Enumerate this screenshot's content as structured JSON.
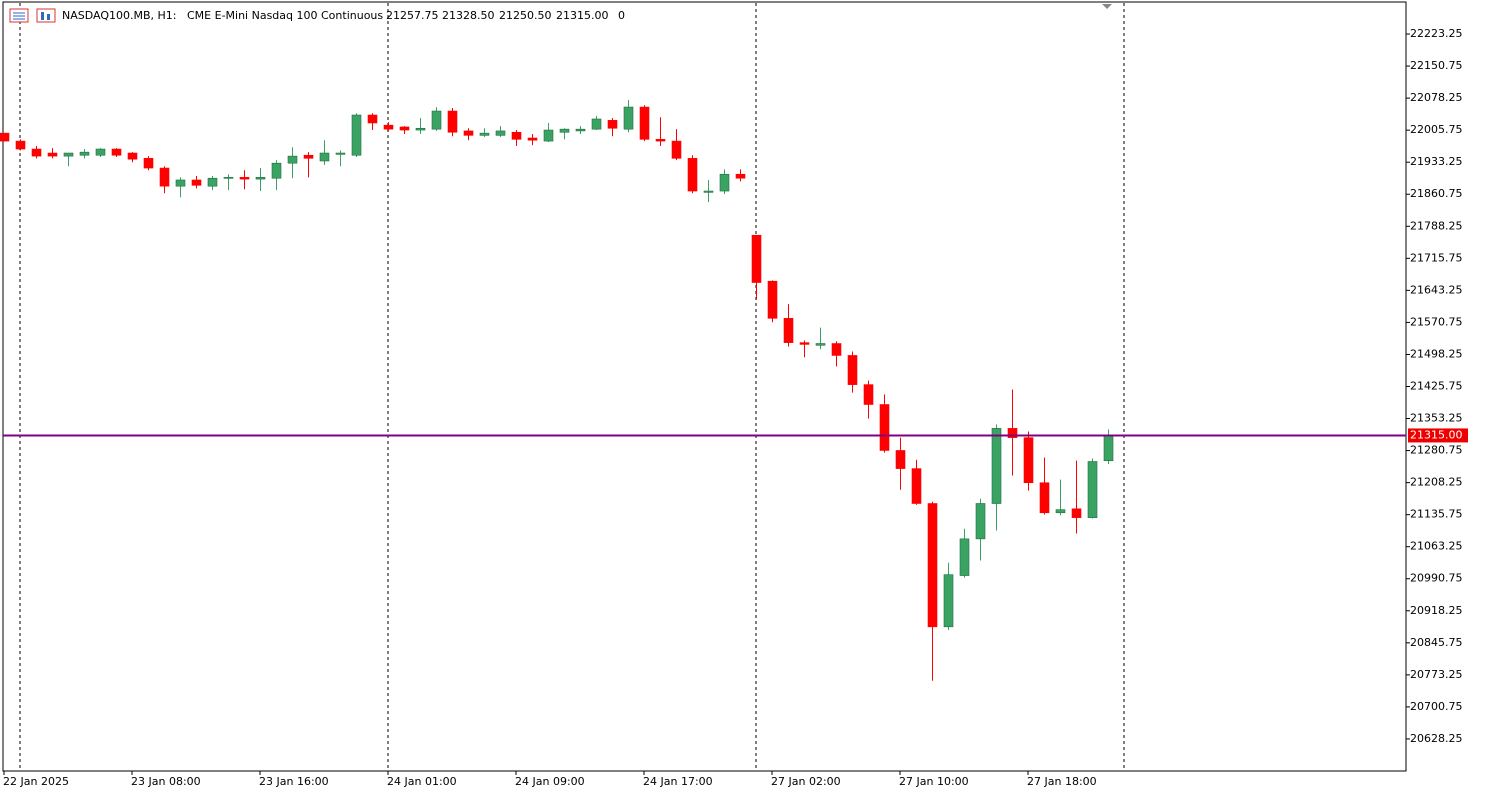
{
  "header": {
    "symbol": "NASDAQ100.MB, H1:",
    "description": "CME E-Mini Nasdaq 100 Continuous",
    "ohlc": [
      "21257.75",
      "21328.50",
      "21250.50",
      "21315.00"
    ],
    "volume": "0"
  },
  "chart_data": {
    "type": "candlestick",
    "categories": [
      "22 Jan 2025",
      null,
      null,
      null,
      null,
      null,
      null,
      null,
      "23 Jan 08:00",
      null,
      null,
      null,
      null,
      null,
      null,
      null,
      "23 Jan 16:00",
      null,
      null,
      null,
      null,
      null,
      null,
      null,
      "24 Jan 01:00",
      null,
      null,
      null,
      null,
      null,
      null,
      null,
      "24 Jan 09:00",
      null,
      null,
      null,
      null,
      null,
      null,
      null,
      "24 Jan 17:00",
      null,
      null,
      null,
      null,
      null,
      null,
      null,
      "27 Jan 02:00",
      null,
      null,
      null,
      null,
      null,
      null,
      null,
      "27 Jan 10:00",
      null,
      null,
      null,
      null,
      null,
      null,
      null,
      "27 Jan 18:00",
      null,
      null,
      null,
      null,
      null
    ],
    "open": [
      21999,
      21981,
      21963,
      21954,
      21947,
      21949,
      21949,
      21963,
      21954,
      21942,
      21920,
      21879,
      21893,
      21879,
      21897,
      21899,
      21895,
      21897,
      21931,
      21949,
      21936,
      21951,
      21949,
      22040,
      22017,
      22013,
      22006,
      22008,
      22049,
      22004,
      21994,
      21994,
      22001,
      21988,
      21981,
      22001,
      22004,
      22008,
      22028,
      22008,
      22058,
      21985,
      21981,
      21942,
      21865,
      21868,
      21906,
      21768,
      21664,
      21580,
      21525,
      21519,
      21523,
      21496,
      21430,
      21385,
      21281,
      21240,
      21161,
      20882,
      20998,
      21081,
      21161,
      21331,
      21310,
      21208,
      21140,
      21149,
      21129,
      21257.75
    ],
    "high": [
      21999,
      21985,
      21970,
      21965,
      21954,
      21963,
      21965,
      21965,
      21956,
      21947,
      21924,
      21899,
      21902,
      21902,
      21906,
      21915,
      21920,
      21938,
      21967,
      21956,
      21983,
      21960,
      22044,
      22044,
      22024,
      22015,
      22033,
      22058,
      22056,
      22010,
      22010,
      22015,
      22006,
      21997,
      22022,
      22010,
      22015,
      22038,
      22033,
      22074,
      22062,
      22035,
      22008,
      21949,
      21893,
      21917,
      21917,
      21768,
      21666,
      21612,
      21530,
      21559,
      21528,
      21505,
      21439,
      21408,
      21310,
      21260,
      21165,
      21027,
      21104,
      21172,
      21340,
      21419,
      21324,
      21265,
      21215,
      21258,
      21263,
      21328.5
    ],
    "low": [
      21981,
      21960,
      21942,
      21942,
      21924,
      21942,
      21945,
      21945,
      21933,
      21915,
      21863,
      21854,
      21874,
      21870,
      21870,
      21872,
      21868,
      21870,
      21897,
      21899,
      21927,
      21924,
      21945,
      22006,
      22004,
      21997,
      21997,
      22004,
      21992,
      21983,
      21990,
      21990,
      21970,
      21972,
      21979,
      21985,
      21997,
      22006,
      21992,
      22001,
      21981,
      21970,
      21938,
      21863,
      21843,
      21861,
      21890,
      21623,
      21571,
      21516,
      21492,
      21510,
      21471,
      21412,
      21353,
      21276,
      21192,
      21158,
      20760,
      20875,
      20993,
      21032,
      21100,
      21224,
      21190,
      21136,
      21134,
      21093,
      21127,
      21250.5
    ],
    "close": [
      21981,
      21963,
      21947,
      21947,
      21954,
      21956,
      21963,
      21949,
      21940,
      21920,
      21879,
      21893,
      21881,
      21897,
      21899,
      21895,
      21899,
      21931,
      21947,
      21942,
      21954,
      21954,
      22040,
      22022,
      22008,
      22006,
      22010,
      22049,
      22001,
      21994,
      21999,
      22004,
      21985,
      21983,
      22006,
      22008,
      22008,
      22031,
      22010,
      22058,
      21985,
      21981,
      21942,
      21868,
      21868,
      21906,
      21897,
      21661,
      21580,
      21525,
      21521,
      21523,
      21496,
      21430,
      21385,
      21281,
      21240,
      21161,
      20882,
      21000,
      21081,
      21161,
      21331,
      21310,
      21208,
      21140,
      21147,
      21129,
      21256,
      21315
    ],
    "up_color": "#3aa363",
    "down_color": "#ff0000",
    "ylim": [
      20555.75,
      22300.25
    ],
    "yticks": [
      22223.25,
      22150.75,
      22078.25,
      22005.75,
      21933.25,
      21860.75,
      21788.25,
      21715.75,
      21643.25,
      21570.75,
      21498.25,
      21425.75,
      21353.25,
      21280.75,
      21208.25,
      21135.75,
      21063.25,
      20990.75,
      20918.25,
      20845.75,
      20773.25,
      20700.75,
      20628.25
    ],
    "price_line": {
      "value": 21315,
      "label": "21315.00"
    },
    "price_line_color": "#800080"
  }
}
